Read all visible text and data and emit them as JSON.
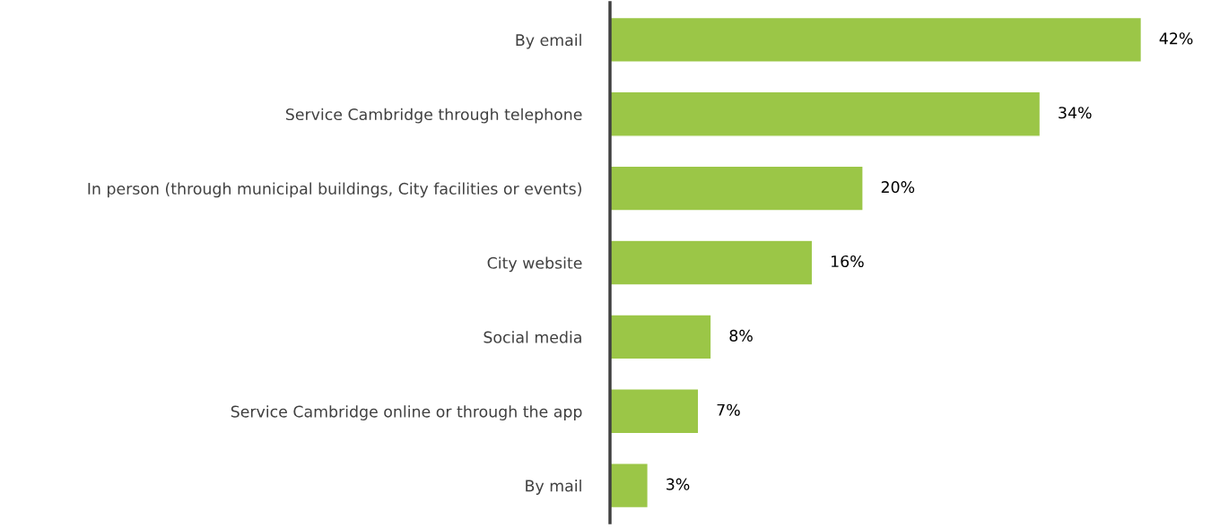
{
  "chart_data": {
    "type": "bar",
    "orientation": "horizontal",
    "categories": [
      "By email",
      "Service Cambridge through telephone",
      "In person (through municipal buildings, City facilities or events)",
      "City website",
      "Social media",
      "Service Cambridge online or through the app",
      "By mail"
    ],
    "values": [
      42,
      34,
      20,
      16,
      8,
      7,
      3
    ],
    "value_labels": [
      "42%",
      "34%",
      "20%",
      "16%",
      "8%",
      "7%",
      "3%"
    ],
    "color": "#9bc647",
    "grid": false,
    "legend": false
  }
}
